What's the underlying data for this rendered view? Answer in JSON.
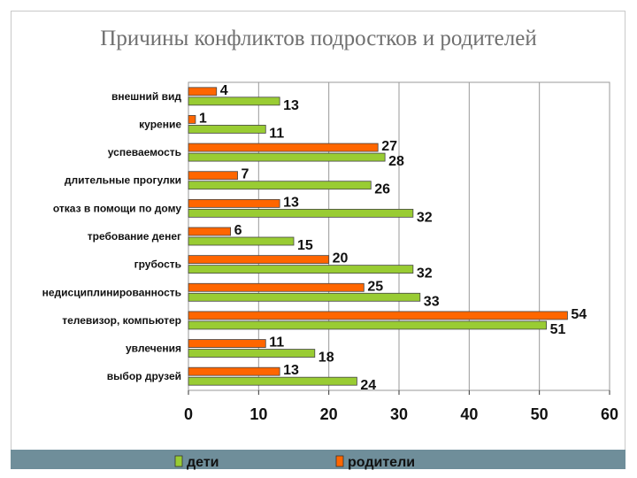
{
  "title": "Причины конфликтов подростков и родителей",
  "colors": {
    "children": "#99cc33",
    "parents": "#ff6600",
    "bar_border": "#444444",
    "grid": "#9a9a9a",
    "legend_bg": "#6f8e9a"
  },
  "chart_data": {
    "type": "bar",
    "orientation": "horizontal",
    "categories": [
      "внешний вид",
      "курение",
      "успеваемость",
      "длительные прогулки",
      "отказ в помощи по дому",
      "требование денег",
      "грубость",
      "недисциплинированность",
      "телевизор, компьютер",
      "увлечения",
      "выбор друзей"
    ],
    "series": [
      {
        "name": "родители",
        "color": "#ff6600",
        "values": [
          4,
          1,
          27,
          7,
          13,
          6,
          20,
          25,
          54,
          11,
          13
        ]
      },
      {
        "name": "дети",
        "color": "#99cc33",
        "values": [
          13,
          11,
          28,
          26,
          32,
          15,
          32,
          33,
          51,
          18,
          24
        ]
      }
    ],
    "xlim": [
      0,
      60
    ],
    "xticks": [
      0,
      10,
      20,
      30,
      40,
      50,
      60
    ],
    "grid": true,
    "legend_placement": "bottom",
    "legend": [
      "дети",
      "родители"
    ]
  }
}
